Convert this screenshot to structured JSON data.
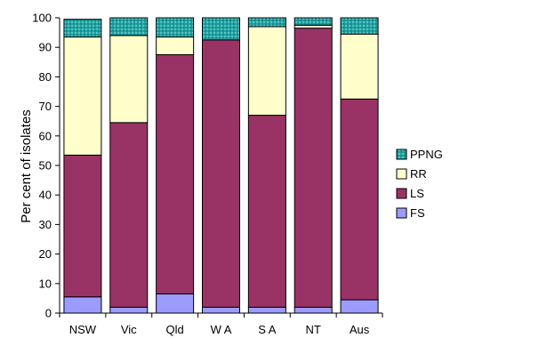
{
  "chart_data": {
    "type": "bar",
    "stacked": true,
    "categories": [
      "NSW",
      "Vic",
      "Qld",
      "W A",
      "S A",
      "NT",
      "Aus"
    ],
    "series": [
      {
        "name": "FS",
        "color": "#9c9cff",
        "values": [
          5.5,
          2,
          6.5,
          2,
          2,
          2,
          4.5
        ]
      },
      {
        "name": "LS",
        "color": "#993366",
        "values": [
          48,
          62.5,
          81,
          90.5,
          65,
          94.5,
          68
        ]
      },
      {
        "name": "RR",
        "color": "#ffffcc",
        "values": [
          40,
          29.5,
          6,
          0,
          30,
          1,
          22
        ]
      },
      {
        "name": "PPNG",
        "color": "#1ea3a3",
        "values": [
          6,
          6,
          6.5,
          7.5,
          3,
          2.5,
          5.5
        ]
      }
    ],
    "ylabel": "Per cent of isolates",
    "xlabel": "",
    "ylim": [
      0,
      100
    ],
    "yticks": [
      0,
      10,
      20,
      30,
      40,
      50,
      60,
      70,
      80,
      90,
      100
    ],
    "grid": false,
    "legend_position": "right"
  }
}
